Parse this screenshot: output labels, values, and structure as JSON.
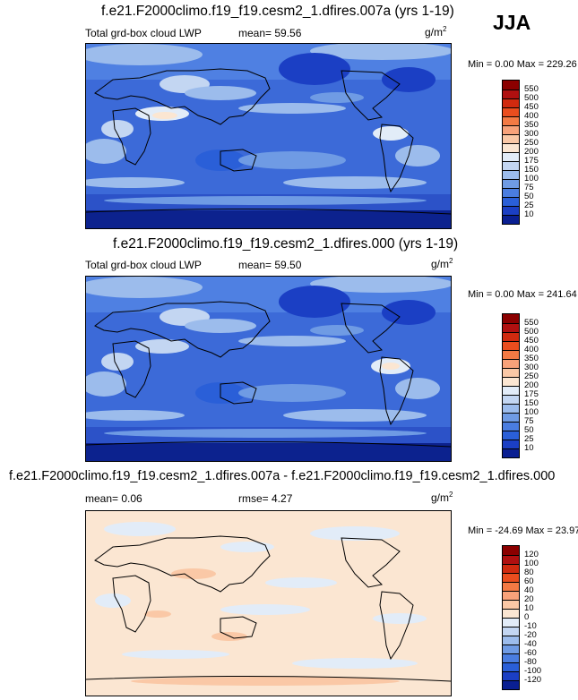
{
  "season": "JJA",
  "panels": [
    {
      "title": "f.e21.F2000climo.f19_f19.cesm2_1.dfires.007a (yrs 1-19)",
      "left_label": "Total grd-box cloud LWP",
      "mid_label": "mean=  59.56",
      "unit": "g/m",
      "unit_exp": "2",
      "minmax": "Min =   0.00 Max = 229.26",
      "colorbar": {
        "labels": [
          "550",
          "500",
          "450",
          "400",
          "350",
          "300",
          "250",
          "200",
          "175",
          "150",
          "100",
          "75",
          "50",
          "25",
          "10"
        ],
        "colors": [
          "#8b0000",
          "#b01010",
          "#d02a0f",
          "#ea4d1e",
          "#f47a44",
          "#f8a27a",
          "#fac8a6",
          "#fbe6d2",
          "#e2ecf8",
          "#c3d6f2",
          "#9cbcec",
          "#6f9be4",
          "#4a7de0",
          "#2a5fd8",
          "#1b3fc4",
          "#0a1f92"
        ]
      }
    },
    {
      "title": "f.e21.F2000climo.f19_f19.cesm2_1.dfires.000 (yrs 1-19)",
      "left_label": "Total grd-box cloud LWP",
      "mid_label": "mean=  59.50",
      "unit": "g/m",
      "unit_exp": "2",
      "minmax": "Min =   0.00 Max = 241.64",
      "colorbar": {
        "labels": [
          "550",
          "500",
          "450",
          "400",
          "350",
          "300",
          "250",
          "200",
          "175",
          "150",
          "100",
          "75",
          "50",
          "25",
          "10"
        ],
        "colors": [
          "#8b0000",
          "#b01010",
          "#d02a0f",
          "#ea4d1e",
          "#f47a44",
          "#f8a27a",
          "#fac8a6",
          "#fbe6d2",
          "#e2ecf8",
          "#c3d6f2",
          "#9cbcec",
          "#6f9be4",
          "#4a7de0",
          "#2a5fd8",
          "#1b3fc4",
          "#0a1f92"
        ]
      }
    },
    {
      "title": "f.e21.F2000climo.f19_f19.cesm2_1.dfires.007a - f.e21.F2000climo.f19_f19.cesm2_1.dfires.000",
      "left_label": "mean=   0.06",
      "mid_label": "rmse=   4.27",
      "unit": "g/m",
      "unit_exp": "2",
      "minmax": "Min = -24.69 Max =  23.97",
      "colorbar": {
        "labels": [
          "120",
          "100",
          "80",
          "60",
          "40",
          "20",
          "10",
          "0",
          "-10",
          "-20",
          "-40",
          "-60",
          "-80",
          "-100",
          "-120"
        ],
        "colors": [
          "#8b0000",
          "#b01010",
          "#d02a0f",
          "#ea4d1e",
          "#f47a44",
          "#f8a27a",
          "#fac8a6",
          "#fbe6d2",
          "#e2ecf8",
          "#c3d6f2",
          "#9cbcec",
          "#6f9be4",
          "#4a7de0",
          "#2a5fd8",
          "#1b3fc4",
          "#0a1f92"
        ]
      }
    }
  ]
}
